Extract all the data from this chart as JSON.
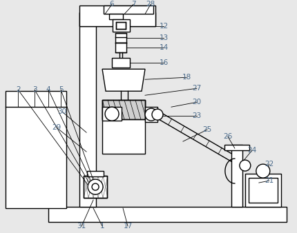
{
  "bg_color": "#e8e8e8",
  "line_color": "#000000",
  "label_color": "#4a6a8a",
  "fig_width": 4.3,
  "fig_height": 3.38,
  "dpi": 100
}
